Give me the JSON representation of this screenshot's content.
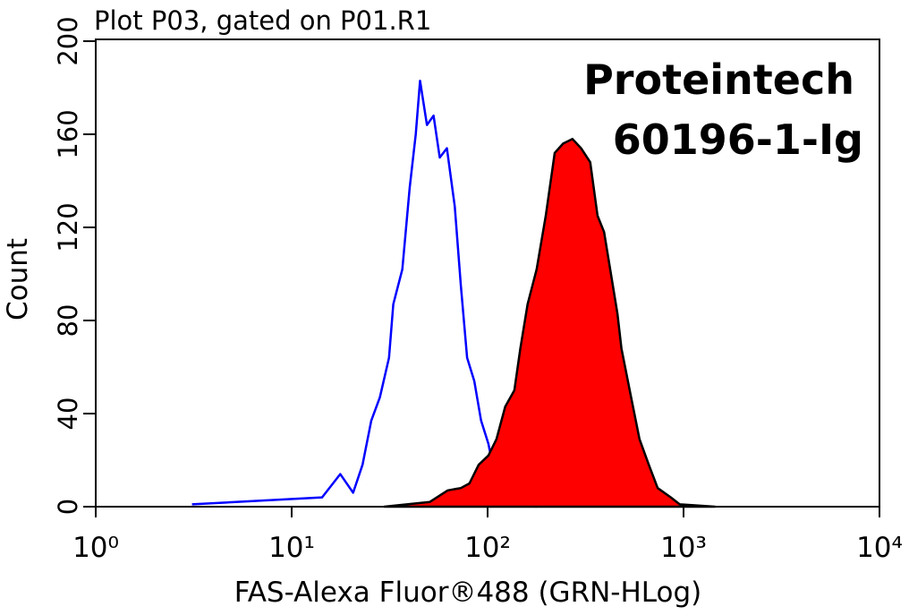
{
  "chart_data": {
    "type": "histogram-overlay",
    "title": "Plot P03, gated on P01.R1",
    "annotations": [
      "Proteintech",
      "60196-1-Ig"
    ],
    "x_label": "FAS-Alexa Fluor®488 (GRN-HLog)",
    "y_label": "Count",
    "x_log": true,
    "xlim": [
      1,
      10000
    ],
    "xticks": [
      {
        "value": 1,
        "label": "10⁰"
      },
      {
        "value": 10,
        "label": "10¹"
      },
      {
        "value": 100,
        "label": "10²"
      },
      {
        "value": 1000,
        "label": "10³"
      },
      {
        "value": 10000,
        "label": "10⁴"
      }
    ],
    "ylim": [
      0,
      200
    ],
    "yticks": [
      0,
      40,
      80,
      120,
      160,
      200
    ],
    "series": [
      {
        "color": "#0000ff",
        "fill": "none",
        "x": [
          3.1,
          14.3,
          17.7,
          20.6,
          23,
          25.5,
          28.2,
          31.4,
          33,
          36.7,
          40,
          43,
          45.2,
          49,
          53,
          57,
          62,
          68,
          73,
          78.6,
          85.5,
          92.6,
          101,
          111,
          130,
          178
        ],
        "values": [
          1,
          4,
          14,
          6,
          18,
          37,
          47,
          64,
          87,
          102,
          137,
          160,
          183,
          164,
          168,
          150,
          154,
          129,
          95,
          64,
          54,
          37,
          27,
          10,
          2,
          0
        ]
      },
      {
        "color": "#000000",
        "fill": "#ff0000",
        "x": [
          29.7,
          50.6,
          62.6,
          73,
          80.8,
          90,
          101,
          111,
          123,
          137,
          147,
          160,
          178,
          198,
          220,
          243,
          271,
          300,
          334,
          364,
          393,
          436,
          460,
          482,
          537,
          596,
          665,
          738,
          861,
          956,
          1450
        ],
        "values": [
          0,
          2,
          7,
          8,
          10,
          18,
          22,
          29,
          43,
          50,
          68,
          87,
          102,
          125,
          152,
          156,
          158,
          154,
          148,
          125,
          118,
          95,
          83,
          68,
          48,
          29,
          18,
          8,
          4,
          1,
          0
        ]
      }
    ]
  }
}
